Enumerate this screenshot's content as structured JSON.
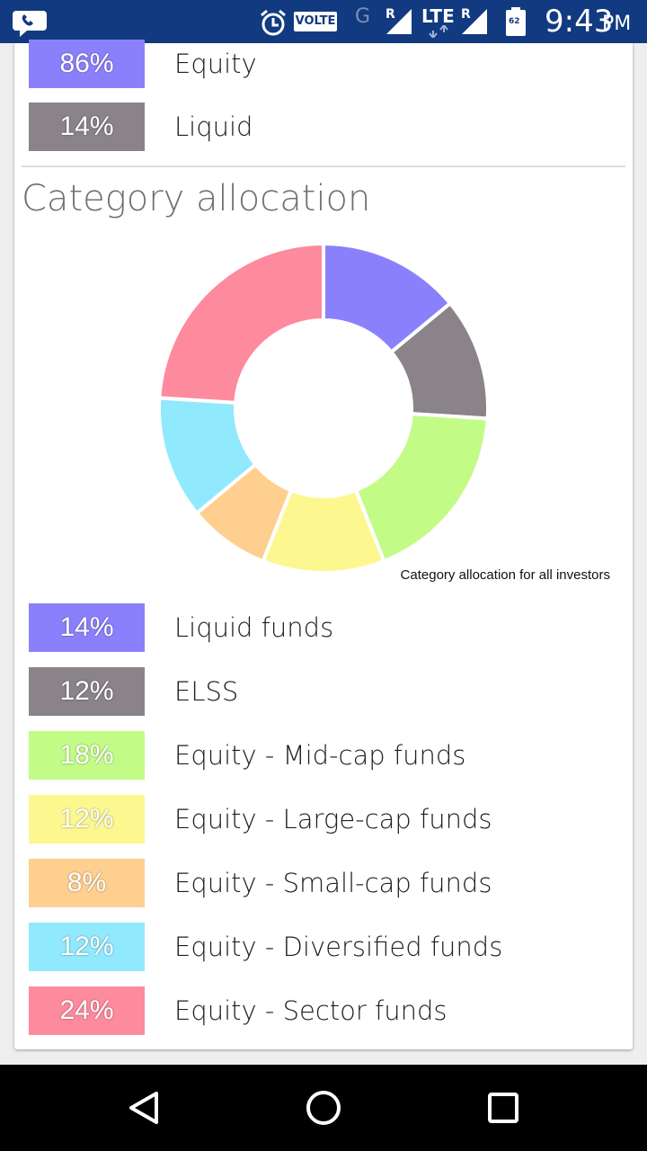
{
  "status_bar": {
    "time": "9:43",
    "ampm": "PM",
    "volte": "VOLTE",
    "network_g": "G",
    "roaming_1": "R",
    "roaming_2": "R",
    "lte": "LTE",
    "battery_level": "62",
    "icons": [
      "chat-bubble-phone-icon",
      "alarm-clock-icon",
      "signal-icon",
      "battery-icon"
    ]
  },
  "asset_allocation": {
    "items": [
      {
        "percent": "86%",
        "label": "Equity",
        "color": "#8b80fb"
      },
      {
        "percent": "14%",
        "label": "Liquid",
        "color": "#8a8389"
      }
    ]
  },
  "category_allocation": {
    "title": "Category allocation",
    "caption": "Category allocation for all investors",
    "items": [
      {
        "percent": "14%",
        "label": "Liquid funds",
        "color": "#8b80fb"
      },
      {
        "percent": "12%",
        "label": "ELSS",
        "color": "#8a8389"
      },
      {
        "percent": "18%",
        "label": "Equity - Mid-cap funds",
        "color": "#c3fb87"
      },
      {
        "percent": "12%",
        "label": "Equity - Large-cap funds",
        "color": "#fdf78f"
      },
      {
        "percent": "8%",
        "label": "Equity - Small-cap funds",
        "color": "#fecf8f"
      },
      {
        "percent": "12%",
        "label": "Equity - Diversified funds",
        "color": "#91e9fd"
      },
      {
        "percent": "24%",
        "label": "Equity - Sector funds",
        "color": "#fe8a9d"
      }
    ]
  },
  "chart_data": {
    "type": "pie",
    "title": "Category allocation",
    "caption": "Category allocation for all investors",
    "categories": [
      "Liquid funds",
      "ELSS",
      "Equity - Mid-cap funds",
      "Equity - Large-cap funds",
      "Equity - Small-cap funds",
      "Equity - Diversified funds",
      "Equity - Sector funds"
    ],
    "values": [
      14,
      12,
      18,
      12,
      8,
      12,
      24
    ],
    "colors": [
      "#8b80fb",
      "#8a8389",
      "#c3fb87",
      "#fdf78f",
      "#fecf8f",
      "#91e9fd",
      "#fe8a9d"
    ],
    "donut": true
  },
  "nav_bar": {
    "icons": [
      "back-triangle-icon",
      "home-circle-icon",
      "recents-square-icon"
    ]
  }
}
